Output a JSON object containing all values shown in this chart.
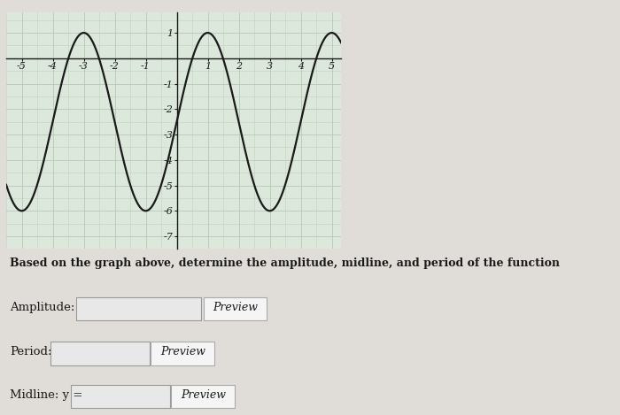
{
  "xlim": [
    -5.5,
    5.3
  ],
  "ylim": [
    -7.5,
    1.8
  ],
  "xticks": [
    -5,
    -4,
    -3,
    -2,
    -1,
    1,
    2,
    3,
    4,
    5
  ],
  "yticks": [
    -7,
    -6,
    -5,
    -4,
    -3,
    -2,
    -1,
    1
  ],
  "amplitude": 3.5,
  "midline": -2.5,
  "period": 4,
  "curve_color": "#1a1a1a",
  "grid_color": "#b8c8b8",
  "bg_color": "#dce8dc",
  "text_color": "#1a1a1a",
  "question_text": "Based on the graph above, determine the amplitude, midline, and period of the function",
  "label_amplitude": "Amplitude:",
  "label_period": "Period:",
  "label_midline": "Midline: y =",
  "preview_text": "Preview",
  "input_box_color": "#e8e8e8",
  "preview_box_color": "#f5f5f5",
  "overall_bg": "#c8c8c8",
  "page_bg": "#e0ddd8",
  "fig_width": 7.0,
  "fig_height": 4.69
}
